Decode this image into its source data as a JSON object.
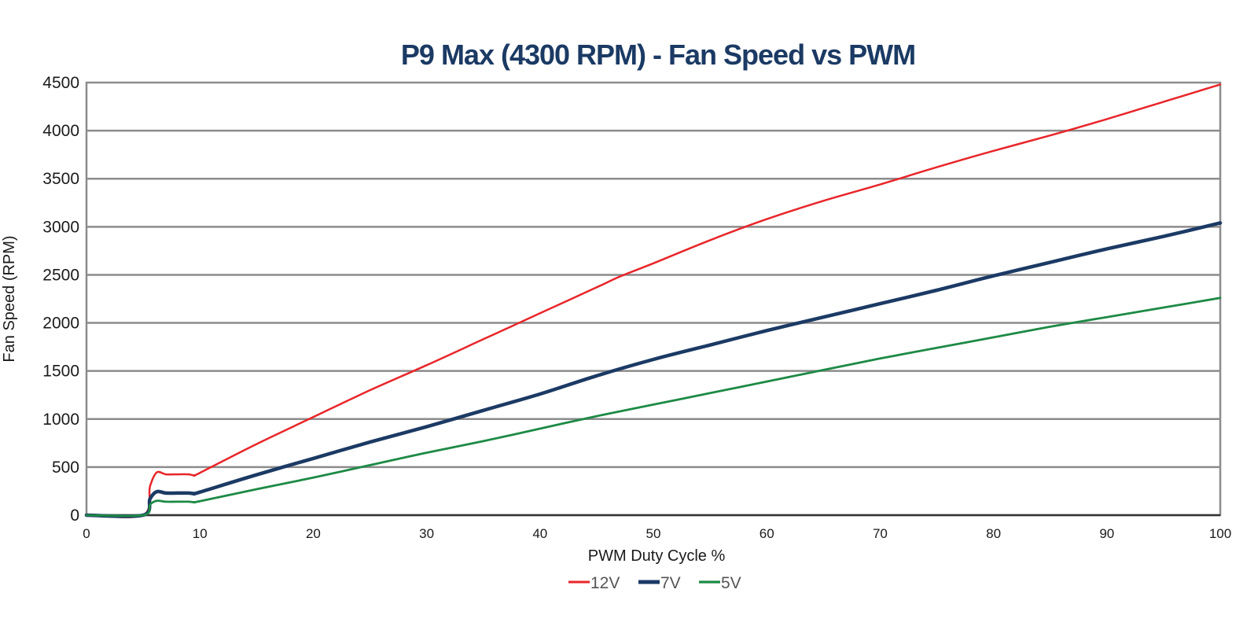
{
  "chart_data": {
    "type": "line",
    "title": "P9 Max (4300 RPM) - Fan Speed vs PWM",
    "xlabel": "PWM Duty Cycle %",
    "ylabel": "Fan Speed (RPM)",
    "xlim": [
      0,
      100
    ],
    "ylim": [
      0,
      4500
    ],
    "x_ticks": [
      "0",
      "10",
      "20",
      "30",
      "40",
      "50",
      "60",
      "70",
      "80",
      "90",
      "100"
    ],
    "y_ticks": [
      "0",
      "500",
      "1000",
      "1500",
      "2000",
      "2500",
      "3000",
      "3500",
      "4000",
      "4500"
    ],
    "grid": true,
    "legend_position": "bottom",
    "series": [
      {
        "name": "12V",
        "color": "#e8262a",
        "x": [
          0,
          5,
          5.6,
          6.2,
          7,
          8,
          9,
          9.5,
          10,
          15,
          20,
          25,
          30,
          35,
          40,
          45,
          47,
          50,
          55,
          60,
          65,
          70,
          75,
          80,
          85,
          90,
          95,
          100
        ],
        "y": [
          0,
          0,
          300,
          445,
          425,
          425,
          425,
          415,
          440,
          740,
          1020,
          1300,
          1560,
          1830,
          2100,
          2370,
          2480,
          2620,
          2860,
          3080,
          3270,
          3440,
          3620,
          3790,
          3950,
          4120,
          4300,
          4480
        ]
      },
      {
        "name": "7V",
        "color": "#1b3a64",
        "x": [
          0,
          5,
          5.6,
          6.2,
          7,
          8,
          9,
          9.5,
          10,
          15,
          20,
          25,
          30,
          35,
          40,
          45,
          50,
          55,
          60,
          65,
          70,
          75,
          80,
          85,
          90,
          95,
          100
        ],
        "y": [
          0,
          0,
          170,
          245,
          230,
          230,
          230,
          225,
          240,
          420,
          590,
          760,
          920,
          1090,
          1260,
          1450,
          1620,
          1770,
          1920,
          2060,
          2200,
          2340,
          2490,
          2630,
          2770,
          2900,
          3040
        ]
      },
      {
        "name": "5V",
        "color": "#1d8a45",
        "x": [
          0,
          5,
          5.6,
          6.2,
          7,
          8,
          9,
          9.5,
          10,
          15,
          20,
          25,
          30,
          35,
          40,
          45,
          50,
          55,
          60,
          65,
          70,
          75,
          80,
          85,
          90,
          95,
          100
        ],
        "y": [
          0,
          0,
          110,
          150,
          140,
          140,
          140,
          135,
          145,
          270,
          390,
          520,
          650,
          770,
          900,
          1030,
          1150,
          1270,
          1390,
          1510,
          1630,
          1740,
          1850,
          1960,
          2060,
          2160,
          2260
        ]
      }
    ]
  }
}
